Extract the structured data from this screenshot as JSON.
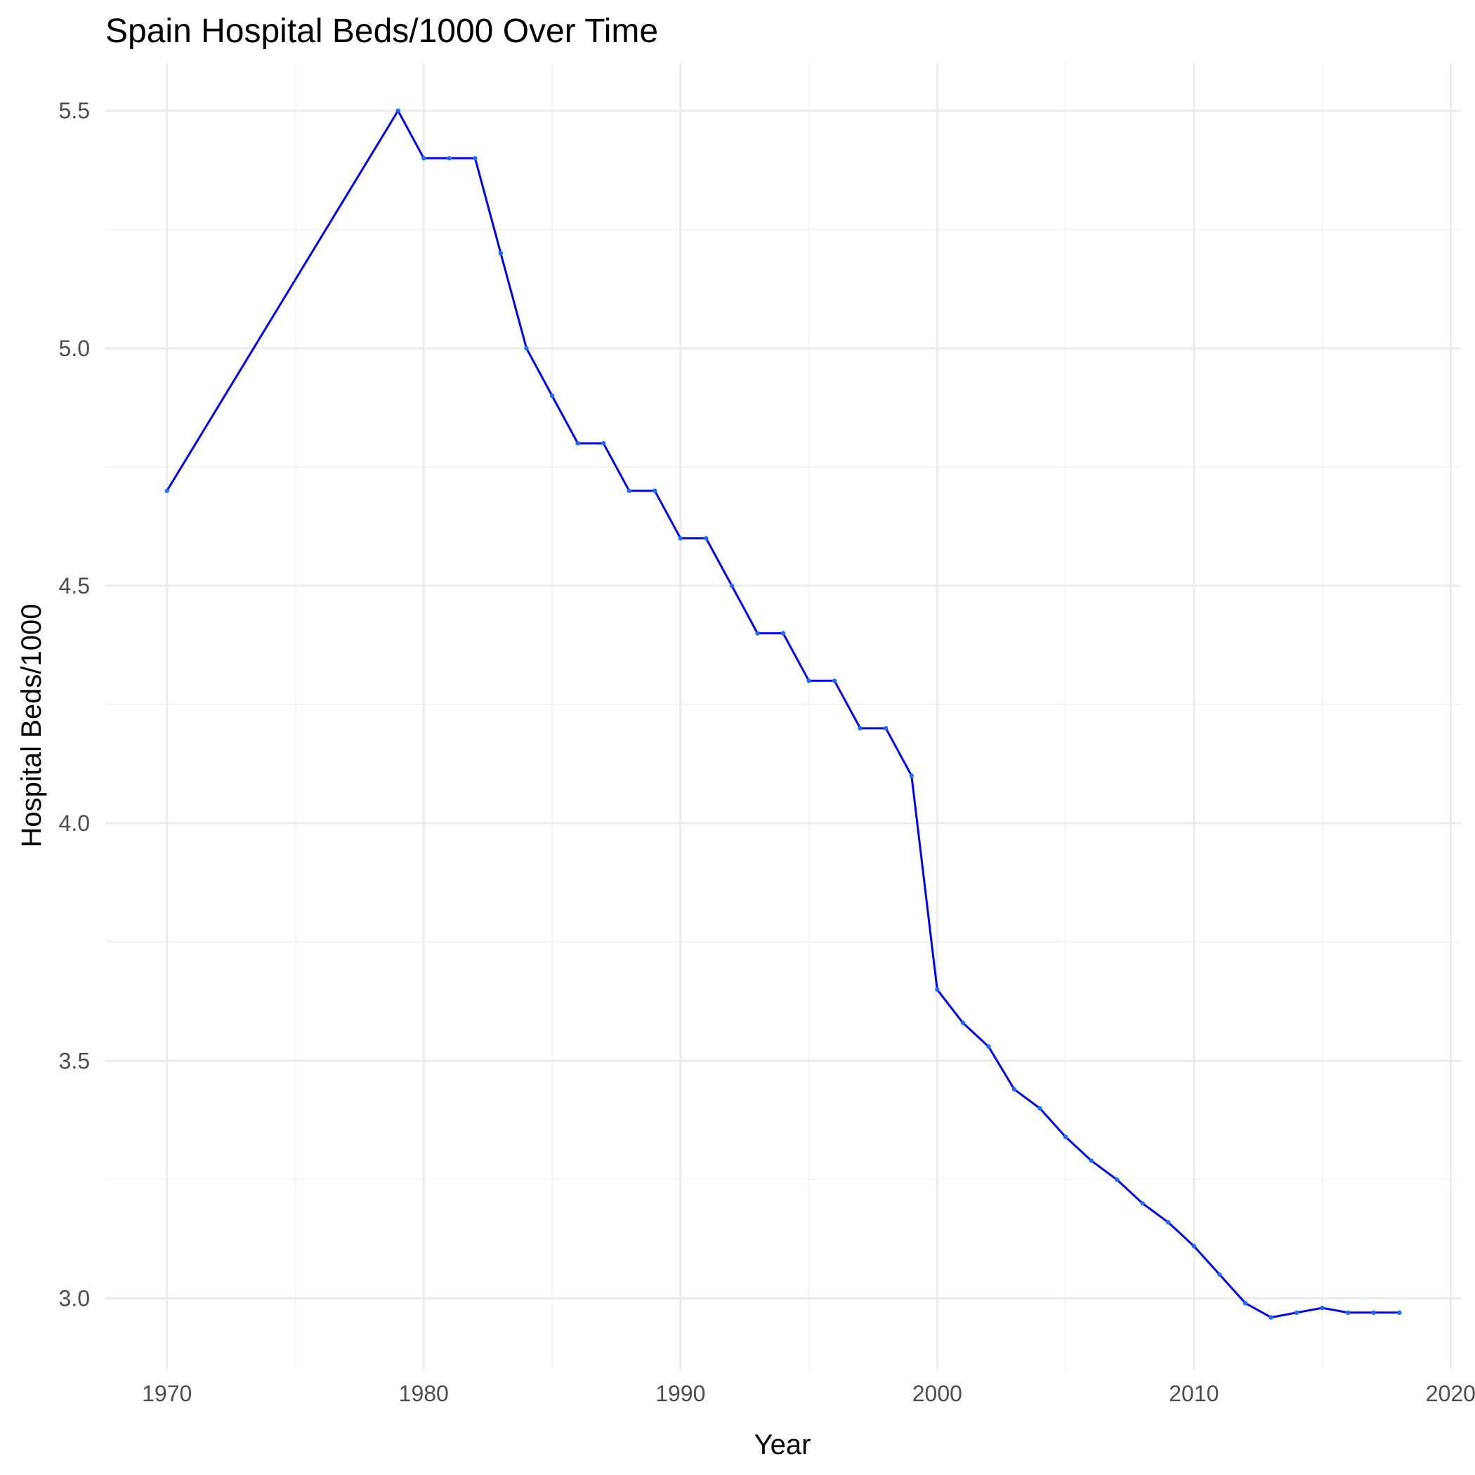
{
  "chart_data": {
    "type": "line",
    "title": "Spain Hospital Beds/1000 Over Time",
    "xlabel": "Year",
    "ylabel": "Hospital Beds/1000",
    "xlim": [
      1967.6,
      2020.4
    ],
    "ylim": [
      2.85,
      5.6
    ],
    "x_ticks": [
      1970,
      1980,
      1990,
      2000,
      2010,
      2020
    ],
    "x_tick_labels": [
      "1970",
      "1980",
      "1990",
      "2000",
      "2010",
      "2020"
    ],
    "y_ticks": [
      3.0,
      3.5,
      4.0,
      4.5,
      5.0,
      5.5
    ],
    "y_tick_labels": [
      "3.0",
      "3.5",
      "4.0",
      "4.5",
      "5.0",
      "5.5"
    ],
    "grid": true,
    "colors": {
      "line": "#0000ff",
      "points": "#1e6cff",
      "grid": "#ebebeb"
    },
    "series": [
      {
        "x": [
          1970,
          1979,
          1980,
          1981,
          1982,
          1983,
          1984,
          1985,
          1986,
          1987,
          1988,
          1989,
          1990,
          1991,
          1992,
          1993,
          1994,
          1995,
          1996,
          1997,
          1998,
          1999,
          2000,
          2001,
          2002,
          2003,
          2004,
          2005,
          2006,
          2007,
          2008,
          2009,
          2010,
          2011,
          2012,
          2013,
          2014,
          2015,
          2016,
          2017,
          2018
        ],
        "values": [
          4.7,
          5.5,
          5.4,
          5.4,
          5.4,
          5.2,
          5.0,
          4.9,
          4.8,
          4.8,
          4.7,
          4.7,
          4.6,
          4.6,
          4.5,
          4.4,
          4.4,
          4.3,
          4.3,
          4.2,
          4.2,
          4.1,
          3.65,
          3.58,
          3.53,
          3.44,
          3.4,
          3.34,
          3.29,
          3.25,
          3.2,
          3.16,
          3.11,
          3.05,
          2.99,
          2.96,
          2.97,
          2.98,
          2.97,
          2.97,
          2.97
        ]
      }
    ]
  }
}
